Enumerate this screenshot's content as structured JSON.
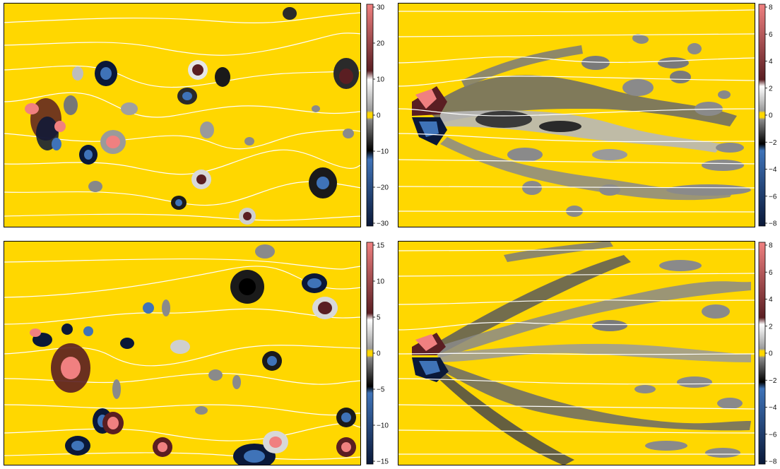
{
  "colors": {
    "background": "#ffd700",
    "streamline": "#ffffff",
    "frame": "#000000",
    "positive_light": "#f08080",
    "positive_dark": "#5a1e22",
    "negative_dark": "#0a1838",
    "negative_light": "#3f73b8",
    "zero_band": "#ffd700",
    "gray_light": "#e6e6e6",
    "gray_dark": "#2a2a2a"
  },
  "panels": [
    {
      "id": "top-left",
      "colorbar": {
        "ticks": [
          "30",
          "20",
          "10",
          "0",
          "−10",
          "−20",
          "−30"
        ]
      }
    },
    {
      "id": "top-right",
      "colorbar": {
        "ticks": [
          "8",
          "6",
          "4",
          "2",
          "0",
          "−2",
          "−4",
          "−6",
          "−8"
        ]
      }
    },
    {
      "id": "bottom-left",
      "colorbar": {
        "ticks": [
          "15",
          "10",
          "5",
          "0",
          "−5",
          "−10",
          "−15"
        ]
      }
    },
    {
      "id": "bottom-right",
      "colorbar": {
        "ticks": [
          "8",
          "6",
          "4",
          "2",
          "0",
          "−2",
          "−4",
          "−6",
          "−8"
        ]
      }
    }
  ]
}
